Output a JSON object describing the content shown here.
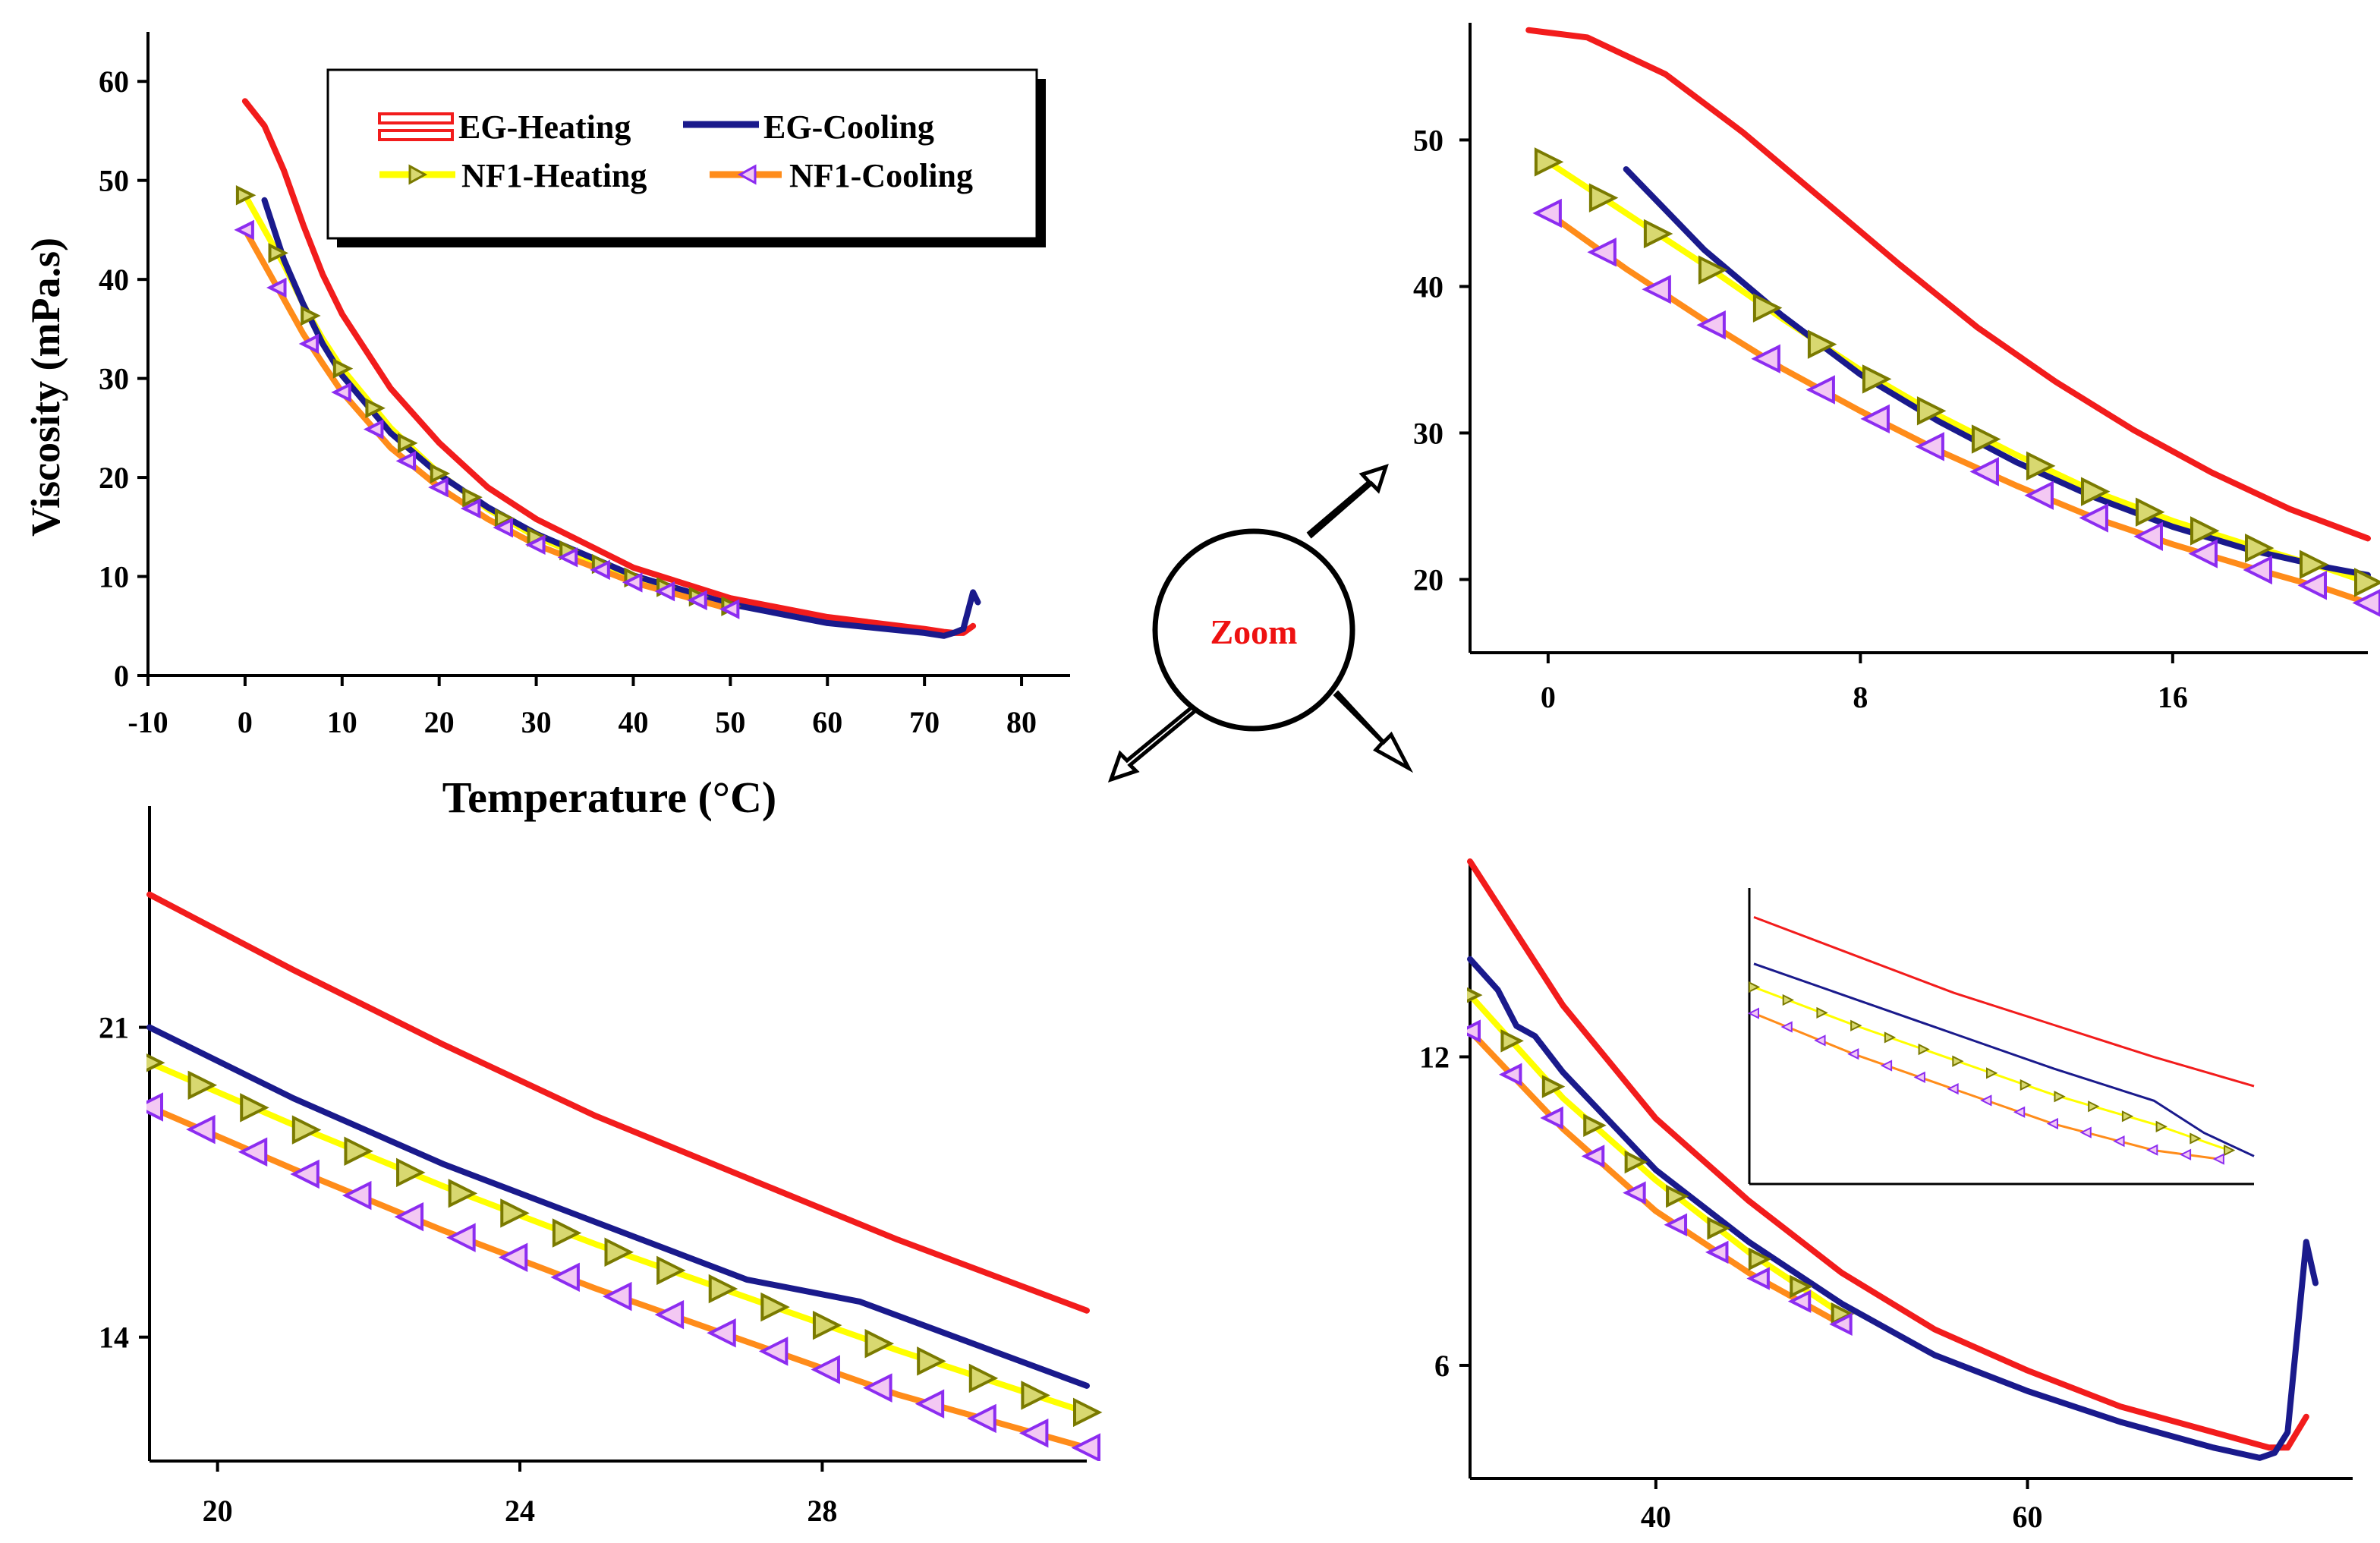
{
  "series_names": [
    "EG-Heating",
    "EG-Cooling",
    "NF1-Heating",
    "NF1-Cooling"
  ],
  "colors": {
    "eg_heating": "#f21c1c",
    "eg_cooling": "#1a1a8c",
    "nf1_heating": "#ffff00",
    "nf1_cooling": "#ff8c1a",
    "marker_heating_edge": "#7a7a00",
    "marker_heating_fill": "#d8d870",
    "marker_cooling_edge": "#8c2cf0",
    "marker_cooling_fill": "#f3c8f3",
    "zoom_text": "#ee1111"
  },
  "zoom_label": "Zoom",
  "chart_data": [
    {
      "id": "main",
      "type": "line",
      "title": "",
      "xlabel": "Temperature (°C)",
      "ylabel": "Viscosity (mPa.s)",
      "xlim": [
        -10,
        85
      ],
      "ylim": [
        0,
        65
      ],
      "xticks": [
        -10,
        0,
        10,
        20,
        30,
        40,
        50,
        60,
        70,
        80
      ],
      "yticks": [
        0,
        10,
        20,
        30,
        40,
        50,
        60
      ],
      "xtick_labels": [
        "-10",
        "0",
        "10",
        "20",
        "30",
        "40",
        "50",
        "60",
        "70",
        "80"
      ],
      "ytick_labels": [
        "0",
        "10",
        "20",
        "30",
        "40",
        "50",
        "60"
      ],
      "legend": "top-right",
      "series": [
        {
          "name": "EG-Heating",
          "x": [
            0,
            2,
            4,
            6,
            8,
            10,
            15,
            20,
            25,
            30,
            40,
            50,
            60,
            70,
            72,
            73,
            74,
            75
          ],
          "y": [
            58,
            55.5,
            51,
            45.5,
            40.5,
            36.5,
            29,
            23.5,
            19,
            15.8,
            10.9,
            7.8,
            5.9,
            4.7,
            4.4,
            4.3,
            4.3,
            5.0
          ]
        },
        {
          "name": "EG-Cooling",
          "x": [
            2,
            4,
            6,
            8,
            10,
            15,
            20,
            25,
            30,
            40,
            50,
            60,
            70,
            72,
            73,
            74,
            75,
            75.5
          ],
          "y": [
            48,
            42,
            37.5,
            33.5,
            30.3,
            24.5,
            20.3,
            17,
            14.3,
            10.1,
            7.2,
            5.3,
            4.3,
            4.0,
            4.3,
            4.7,
            8.4,
            7.4
          ]
        },
        {
          "name": "NF1-Heating",
          "x": [
            0,
            2,
            4,
            6,
            8,
            10,
            15,
            20,
            25,
            30,
            40,
            50
          ],
          "y": [
            48.5,
            45,
            41.5,
            37.5,
            34,
            31,
            25,
            20.4,
            16.8,
            14,
            9.9,
            7.0
          ]
        },
        {
          "name": "NF1-Cooling",
          "x": [
            0,
            2,
            4,
            6,
            8,
            10,
            15,
            20,
            25,
            30,
            40,
            50
          ],
          "y": [
            45,
            41.5,
            38,
            34.5,
            31.5,
            28.6,
            23,
            19,
            15.8,
            13.2,
            9.4,
            6.7
          ]
        }
      ]
    },
    {
      "id": "zoom_top_right",
      "type": "line",
      "xlim": [
        -2,
        21
      ],
      "ylim": [
        15,
        58
      ],
      "xticks": [
        0,
        8,
        16
      ],
      "yticks": [
        20,
        30,
        40,
        50
      ],
      "xtick_labels": [
        "0",
        "8",
        "16"
      ],
      "ytick_labels": [
        "20",
        "30",
        "40",
        "50"
      ],
      "series": [
        {
          "name": "EG-Heating",
          "x": [
            -0.5,
            1,
            3,
            5,
            7,
            9,
            11,
            13,
            15,
            17,
            19,
            21
          ],
          "y": [
            57.5,
            57,
            54.5,
            50.5,
            46,
            41.5,
            37.2,
            33.5,
            30.2,
            27.3,
            24.8,
            22.8
          ]
        },
        {
          "name": "EG-Cooling",
          "x": [
            2,
            4,
            6,
            8,
            10,
            12,
            14,
            16,
            18,
            20,
            21
          ],
          "y": [
            48,
            42.5,
            38,
            34,
            30.8,
            28,
            25.6,
            23.6,
            22,
            20.8,
            20.3
          ]
        },
        {
          "name": "NF1-Heating",
          "x": [
            0,
            2,
            4,
            6,
            8,
            10,
            12,
            14,
            16,
            18,
            20,
            21
          ],
          "y": [
            48.5,
            45,
            41.5,
            37.8,
            34.3,
            31.2,
            28.5,
            26,
            24,
            22.3,
            20.7,
            19.8
          ]
        },
        {
          "name": "NF1-Cooling",
          "x": [
            0,
            2,
            4,
            6,
            8,
            10,
            12,
            14,
            16,
            18,
            20,
            21
          ],
          "y": [
            45,
            41.2,
            37.7,
            34.4,
            31.5,
            28.8,
            26.4,
            24.2,
            22.4,
            20.8,
            19.3,
            18.4
          ]
        }
      ]
    },
    {
      "id": "zoom_bottom_left",
      "type": "line",
      "xlim": [
        19.1,
        31.5
      ],
      "ylim": [
        11.2,
        26
      ],
      "xticks": [
        20,
        24,
        28
      ],
      "yticks": [
        14,
        21
      ],
      "xtick_labels": [
        "20",
        "24",
        "28"
      ],
      "ytick_labels": [
        "14",
        "21"
      ],
      "series": [
        {
          "name": "EG-Heating",
          "x": [
            19.1,
            21,
            23,
            25,
            27,
            29,
            31.5
          ],
          "y": [
            24.0,
            22.3,
            20.6,
            19.0,
            17.6,
            16.2,
            14.6
          ]
        },
        {
          "name": "EG-Cooling",
          "x": [
            19.1,
            21,
            23,
            25,
            27,
            28.5,
            31.5
          ],
          "y": [
            21.0,
            19.4,
            17.9,
            16.6,
            15.3,
            14.8,
            12.9
          ]
        },
        {
          "name": "NF1-Heating",
          "x": [
            19.1,
            21,
            23,
            25,
            27,
            29,
            31.5
          ],
          "y": [
            20.2,
            18.8,
            17.4,
            16.1,
            14.9,
            13.7,
            12.3
          ]
        },
        {
          "name": "NF1-Cooling",
          "x": [
            19.1,
            21,
            23,
            25,
            27,
            29,
            31.5
          ],
          "y": [
            19.2,
            17.8,
            16.4,
            15.1,
            13.9,
            12.7,
            11.5
          ]
        }
      ]
    },
    {
      "id": "zoom_bottom_right",
      "type": "line",
      "xlim": [
        30,
        77.5
      ],
      "ylim": [
        3.8,
        15.8
      ],
      "xticks": [
        40,
        60
      ],
      "yticks": [
        6,
        12
      ],
      "xtick_labels": [
        "40",
        "60"
      ],
      "ytick_labels": [
        "6",
        "12"
      ],
      "series": [
        {
          "name": "EG-Heating",
          "x": [
            30,
            35,
            40,
            45,
            50,
            55,
            60,
            65,
            70,
            73,
            74,
            75
          ],
          "y": [
            15.8,
            13.0,
            10.8,
            9.2,
            7.8,
            6.7,
            5.9,
            5.2,
            4.7,
            4.4,
            4.4,
            5.0
          ]
        },
        {
          "name": "EG-Cooling",
          "x": [
            30,
            31.5,
            32.5,
            33.5,
            35,
            40,
            45,
            50,
            55,
            60,
            65,
            70,
            72.5,
            73.3,
            74,
            75,
            75.5
          ],
          "y": [
            13.9,
            13.3,
            12.6,
            12.4,
            11.7,
            9.8,
            8.4,
            7.2,
            6.2,
            5.5,
            4.9,
            4.4,
            4.2,
            4.3,
            4.7,
            8.4,
            7.6
          ]
        },
        {
          "name": "NF1-Heating",
          "x": [
            30,
            35,
            40,
            45,
            50
          ],
          "y": [
            13.2,
            11.2,
            9.6,
            8.2,
            7.0
          ]
        },
        {
          "name": "NF1-Cooling",
          "x": [
            30,
            35,
            40,
            45,
            50
          ],
          "y": [
            12.5,
            10.6,
            9.0,
            7.8,
            6.8
          ]
        }
      ]
    },
    {
      "id": "inset",
      "type": "line",
      "xlim": [
        0,
        10
      ],
      "ylim": [
        0,
        10
      ],
      "series": [
        {
          "name": "EG-Heating",
          "x": [
            0,
            2,
            4,
            6,
            8,
            10
          ],
          "y": [
            9.0,
            7.7,
            6.4,
            5.3,
            4.2,
            3.2
          ]
        },
        {
          "name": "EG-Cooling",
          "x": [
            0,
            2,
            4,
            6,
            8,
            9,
            10
          ],
          "y": [
            7.4,
            6.2,
            5.0,
            3.8,
            2.7,
            1.6,
            0.8
          ]
        },
        {
          "name": "NF1-Heating",
          "x": [
            0,
            2,
            4,
            6,
            8,
            9.5
          ],
          "y": [
            6.6,
            5.3,
            4.1,
            2.9,
            1.9,
            1.0
          ]
        },
        {
          "name": "NF1-Cooling",
          "x": [
            0,
            2,
            4,
            6,
            8,
            9.3
          ],
          "y": [
            5.7,
            4.3,
            3.1,
            1.9,
            1.0,
            0.7
          ]
        }
      ]
    }
  ]
}
